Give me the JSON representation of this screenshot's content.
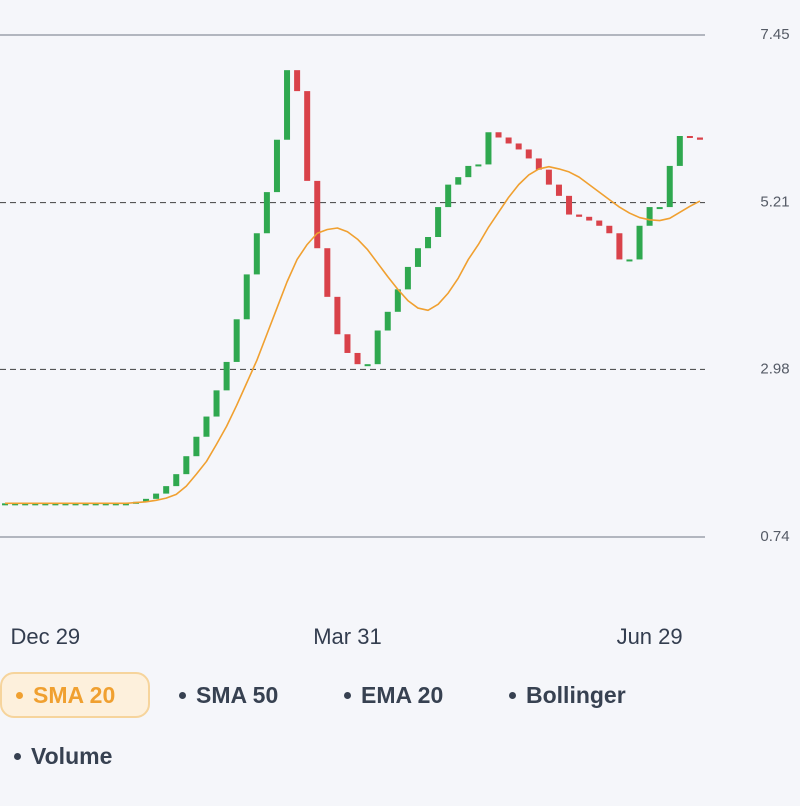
{
  "chart_data": {
    "type": "candlestick",
    "categories": [
      null,
      null,
      null,
      null,
      "Dec 29",
      null,
      null,
      null,
      null,
      null,
      null,
      null,
      null,
      null,
      null,
      null,
      null,
      null,
      null,
      null,
      null,
      null,
      null,
      null,
      null,
      null,
      null,
      null,
      null,
      null,
      null,
      null,
      null,
      null,
      "Mar 31",
      null,
      null,
      null,
      null,
      null,
      null,
      null,
      null,
      null,
      null,
      null,
      null,
      null,
      null,
      null,
      null,
      null,
      null,
      null,
      null,
      null,
      null,
      null,
      null,
      null,
      null,
      null,
      null,
      null,
      "Jun 29",
      null,
      null,
      null,
      null,
      null
    ],
    "open": [
      1.19,
      1.19,
      1.19,
      1.19,
      1.19,
      1.19,
      1.19,
      1.19,
      1.19,
      1.19,
      1.19,
      1.19,
      1.19,
      1.19,
      1.21,
      1.25,
      1.32,
      1.42,
      1.58,
      1.82,
      2.08,
      2.35,
      2.7,
      3.08,
      3.65,
      4.25,
      4.8,
      5.35,
      6.05,
      6.98,
      6.7,
      5.5,
      4.6,
      3.95,
      3.45,
      3.2,
      3.05,
      3.05,
      3.5,
      3.75,
      4.05,
      4.35,
      4.6,
      4.75,
      5.15,
      5.45,
      5.55,
      5.7,
      5.72,
      6.15,
      6.08,
      6.0,
      5.92,
      5.8,
      5.65,
      5.45,
      5.3,
      5.05,
      5.02,
      4.97,
      4.9,
      4.8,
      4.45,
      4.45,
      4.9,
      5.15,
      5.15,
      5.7,
      6.1,
      6.08
    ],
    "close": [
      1.19,
      1.19,
      1.19,
      1.19,
      1.19,
      1.19,
      1.19,
      1.19,
      1.19,
      1.19,
      1.19,
      1.19,
      1.19,
      1.21,
      1.25,
      1.32,
      1.42,
      1.58,
      1.82,
      2.08,
      2.35,
      2.7,
      3.08,
      3.65,
      4.25,
      4.8,
      5.35,
      6.05,
      6.98,
      6.7,
      5.5,
      4.6,
      3.95,
      3.45,
      3.2,
      3.05,
      3.05,
      3.5,
      3.75,
      4.05,
      4.35,
      4.6,
      4.75,
      5.15,
      5.45,
      5.55,
      5.7,
      5.72,
      6.15,
      6.08,
      6.0,
      5.92,
      5.8,
      5.65,
      5.45,
      5.3,
      5.05,
      5.02,
      4.97,
      4.9,
      4.8,
      4.45,
      4.45,
      4.9,
      5.15,
      5.15,
      5.7,
      6.1,
      6.08,
      6.05
    ],
    "up_color": "#2fa84f",
    "down_color": "#d9424a",
    "series": [
      {
        "color": "#f0a030",
        "values": [
          1.19,
          1.19,
          1.19,
          1.19,
          1.19,
          1.19,
          1.19,
          1.19,
          1.19,
          1.19,
          1.19,
          1.19,
          1.19,
          1.2,
          1.21,
          1.23,
          1.26,
          1.31,
          1.42,
          1.58,
          1.75,
          1.98,
          2.22,
          2.5,
          2.8,
          3.1,
          3.45,
          3.8,
          4.15,
          4.45,
          4.65,
          4.8,
          4.85,
          4.87,
          4.82,
          4.72,
          4.58,
          4.4,
          4.22,
          4.05,
          3.9,
          3.8,
          3.77,
          3.85,
          4.0,
          4.2,
          4.45,
          4.65,
          4.88,
          5.08,
          5.28,
          5.45,
          5.58,
          5.66,
          5.69,
          5.66,
          5.62,
          5.55,
          5.45,
          5.35,
          5.25,
          5.15,
          5.07,
          5.01,
          4.98,
          4.97,
          5.0,
          5.08,
          5.16,
          5.23
        ]
      }
    ],
    "ylim": [
      0.74,
      7.45
    ],
    "yticks": [
      7.45,
      5.21,
      2.98,
      0.74
    ],
    "grid": true
  },
  "indicators": [
    "SMA 20",
    "SMA 50",
    "EMA 20",
    "Bollinger",
    "Volume"
  ],
  "active_indicator": "SMA 20"
}
